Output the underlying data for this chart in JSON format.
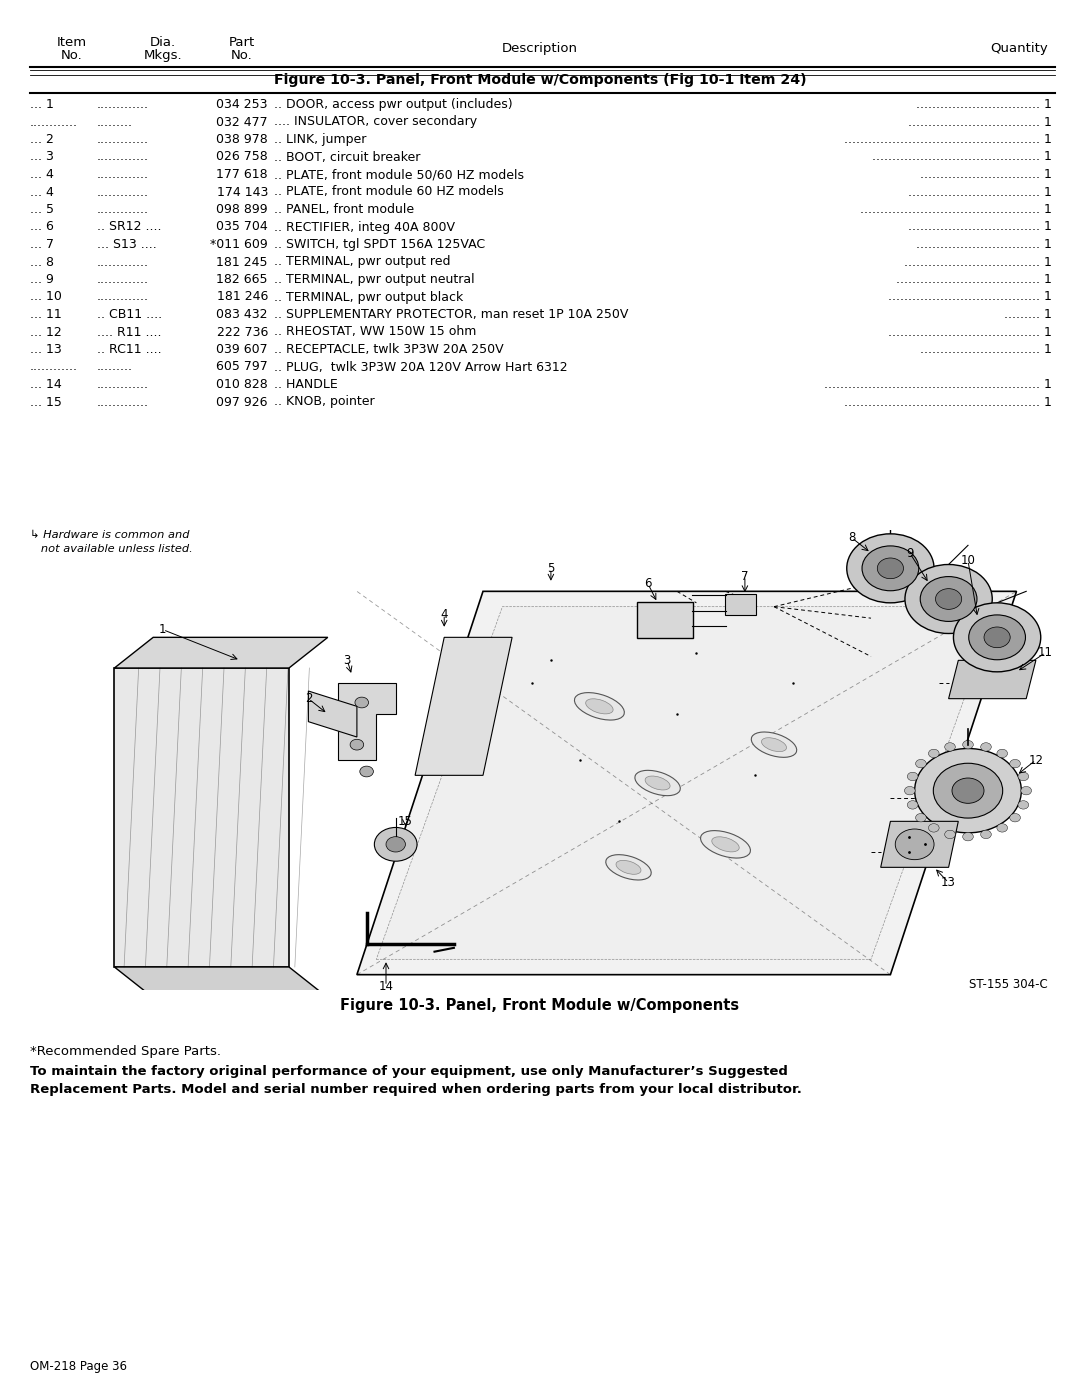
{
  "page_title": "Figure 10-3. Panel, Front Module w/Components (Fig 10-1 Item 24)",
  "figure_caption": "Figure 10-3. Panel, Front Module w/Components",
  "rows": [
    {
      "item": "... 1",
      "dia": ".............",
      "part": "034 253",
      "dots2": " ..",
      "desc": " DOOR, access pwr output (includes)",
      "dots3": " ...............................",
      "qty": " 1"
    },
    {
      "item": "............",
      "dia": ".........",
      "part": "032 477",
      "dots2": " ....",
      "desc": " INSULATOR, cover secondary",
      "dots3": " .................................",
      "qty": " 1"
    },
    {
      "item": "... 2",
      "dia": ".............",
      "part": "038 978",
      "dots2": " ..",
      "desc": " LINK, jumper",
      "dots3": " .................................................",
      "qty": " 1"
    },
    {
      "item": "... 3",
      "dia": ".............",
      "part": "026 758",
      "dots2": " ..",
      "desc": " BOOT, circuit breaker",
      "dots3": " ..........................................",
      "qty": " 1"
    },
    {
      "item": "... 4",
      "dia": ".............",
      "part": "177 618",
      "dots2": " ..",
      "desc": " PLATE, front module 50/60 HZ models",
      "dots3": " ..............................",
      "qty": " 1"
    },
    {
      "item": "... 4",
      "dia": ".............",
      "part": "174 143",
      "dots2": " ..",
      "desc": " PLATE, front module 60 HZ models",
      "dots3": " .................................",
      "qty": " 1"
    },
    {
      "item": "... 5",
      "dia": ".............",
      "part": "098 899",
      "dots2": " ..",
      "desc": " PANEL, front module",
      "dots3": " .............................................",
      "qty": " 1"
    },
    {
      "item": "... 6",
      "dia": ".. SR12 ....",
      "part": "035 704",
      "dots2": " ..",
      "desc": " RECTIFIER, integ 40A 800V",
      "dots3": " .................................",
      "qty": " 1"
    },
    {
      "item": "... 7",
      "dia": "... S13 ....",
      "part": "*011 609",
      "dots2": " ..",
      "desc": " SWITCH, tgl SPDT 156A 125VAC",
      "dots3": " ...............................",
      "qty": " 1"
    },
    {
      "item": "... 8",
      "dia": ".............",
      "part": "181 245",
      "dots2": " ..",
      "desc": " TERMINAL, pwr output red",
      "dots3": " ..................................",
      "qty": " 1"
    },
    {
      "item": "... 9",
      "dia": ".............",
      "part": "182 665",
      "dots2": " ..",
      "desc": " TERMINAL, pwr output neutral",
      "dots3": " ....................................",
      "qty": " 1"
    },
    {
      "item": "... 10",
      "dia": ".............",
      "part": "181 246",
      "dots2": " ..",
      "desc": " TERMINAL, pwr output black",
      "dots3": " ......................................",
      "qty": " 1"
    },
    {
      "item": "... 11",
      "dia": ".. CB11 ....",
      "part": "083 432",
      "dots2": " ..",
      "desc": " SUPPLEMENTARY PROTECTOR, man reset 1P 10A 250V",
      "dots3": " .........",
      "qty": " 1"
    },
    {
      "item": "... 12",
      "dia": ".... R11 ....",
      "part": "222 736",
      "dots2": " ..",
      "desc": " RHEOSTAT, WW 150W 15 ohm",
      "dots3": " ......................................",
      "qty": " 1"
    },
    {
      "item": "... 13",
      "dia": ".. RC11 ....",
      "part": "039 607",
      "dots2": " ..",
      "desc": " RECEPTACLE, twlk 3P3W 20A 250V",
      "dots3": " ..............................",
      "qty": " 1"
    },
    {
      "item": "............",
      "dia": ".........",
      "part": "605 797",
      "dots2": " ..",
      "desc": " PLUG,  twlk 3P3W 20A 120V Arrow Hart 6312",
      "dots3": "",
      "qty": ""
    },
    {
      "item": "... 14",
      "dia": ".............",
      "part": "010 828",
      "dots2": " ..",
      "desc": " HANDLE",
      "dots3": " ......................................................",
      "qty": " 1"
    },
    {
      "item": "... 15",
      "dia": ".............",
      "part": "097 926",
      "dots2": " ..",
      "desc": " KNOB, pointer",
      "dots3": " .................................................",
      "qty": " 1"
    }
  ],
  "hardware_note_line1": "↳ Hardware is common and",
  "hardware_note_line2": "   not available unless listed.",
  "footer_note1": "*Recommended Spare Parts.",
  "footer_note2_bold": "To maintain the factory original performance of your equipment, use only Manufacturer’s Suggested\nReplacement Parts. Model and serial number required when ordering parts from your local distributor.",
  "page_id": "OM-218 Page 36",
  "fig_id": "ST-155 304-C",
  "figure_caption_bold": "Figure 10-3. Panel, Front Module w/Components",
  "page_title_bold": "Figure 10-3. Panel, Front Module w/Components (Fig 10-1 Item 24)"
}
